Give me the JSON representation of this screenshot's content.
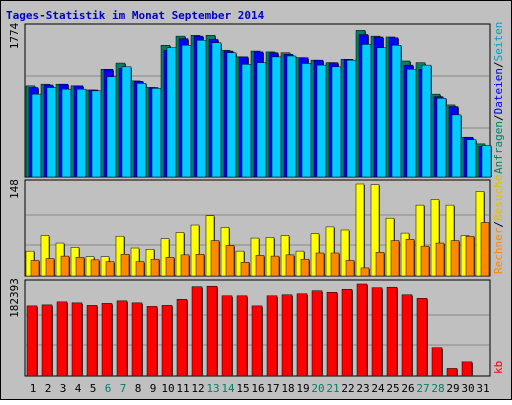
{
  "chart_data": [
    {
      "type": "bar",
      "title": "Tages-Statistik im Monat September 2014",
      "ymax_label": "1774",
      "ylim": [
        0,
        1774
      ],
      "x": [
        1,
        2,
        3,
        4,
        5,
        6,
        7,
        8,
        9,
        10,
        11,
        12,
        13,
        14,
        15,
        16,
        17,
        18,
        19,
        20,
        21,
        22,
        23,
        24,
        25,
        26,
        27,
        28,
        29,
        30,
        31
      ],
      "weekend_days": [
        6,
        7,
        13,
        14,
        20,
        21,
        27,
        28
      ],
      "series": [
        {
          "name": "Anfragen",
          "color": "#008066",
          "values": [
            1100,
            1120,
            1120,
            1100,
            1050,
            1300,
            1375,
            1160,
            1080,
            1590,
            1700,
            1710,
            1710,
            1530,
            1450,
            1520,
            1510,
            1500,
            1440,
            1410,
            1380,
            1420,
            1770,
            1700,
            1690,
            1400,
            1380,
            1000,
            870,
            480,
            400
          ]
        },
        {
          "name": "Dateien",
          "color": "#0000ff",
          "values": [
            1080,
            1110,
            1120,
            1100,
            1050,
            1300,
            1310,
            1155,
            1080,
            1530,
            1670,
            1700,
            1660,
            1520,
            1450,
            1510,
            1500,
            1480,
            1440,
            1410,
            1380,
            1420,
            1720,
            1690,
            1680,
            1350,
            1300,
            970,
            850,
            480,
            370
          ]
        },
        {
          "name": "Seiten",
          "color": "#00ccff",
          "values": [
            1000,
            1080,
            1060,
            1060,
            1040,
            1210,
            1330,
            1130,
            1070,
            1560,
            1590,
            1650,
            1620,
            1500,
            1360,
            1380,
            1450,
            1460,
            1370,
            1350,
            1330,
            1410,
            1600,
            1560,
            1590,
            1300,
            1350,
            950,
            750,
            450,
            380
          ]
        }
      ],
      "legend": [
        "Anfragen",
        "/",
        "Dateien",
        "/",
        "Seiten"
      ]
    },
    {
      "type": "bar",
      "ymax_label": "148",
      "ylim": [
        0,
        148
      ],
      "series": [
        {
          "name": "Besuche",
          "color": "#ffff00",
          "values": [
            40,
            65,
            53,
            46,
            31,
            31,
            64,
            45,
            43,
            60,
            70,
            82,
            97,
            78,
            40,
            61,
            62,
            65,
            40,
            68,
            79,
            74,
            148,
            147,
            93,
            69,
            114,
            123,
            114,
            65,
            136
          ]
        },
        {
          "name": "Rechner",
          "color": "#ff8800",
          "values": [
            25,
            28,
            32,
            30,
            26,
            23,
            35,
            23,
            27,
            30,
            34,
            35,
            57,
            49,
            22,
            33,
            32,
            34,
            27,
            37,
            37,
            25,
            13,
            38,
            57,
            59,
            48,
            53,
            57,
            64,
            86
          ]
        }
      ],
      "legend": [
        "Rechner",
        "/",
        "Besuche"
      ]
    },
    {
      "type": "bar",
      "ymax_label": "182393",
      "ylim": [
        0,
        182393
      ],
      "series": [
        {
          "name": "kb",
          "color": "#ff0000",
          "values": [
            139000,
            141000,
            147000,
            145000,
            140000,
            144000,
            149000,
            145000,
            138000,
            140000,
            152000,
            177000,
            178000,
            159000,
            159000,
            139000,
            159000,
            161000,
            163000,
            169000,
            166000,
            172000,
            182393,
            175000,
            176000,
            161000,
            154000,
            56000,
            15000,
            28000,
            0
          ]
        }
      ],
      "legend": [
        "kb"
      ]
    }
  ]
}
